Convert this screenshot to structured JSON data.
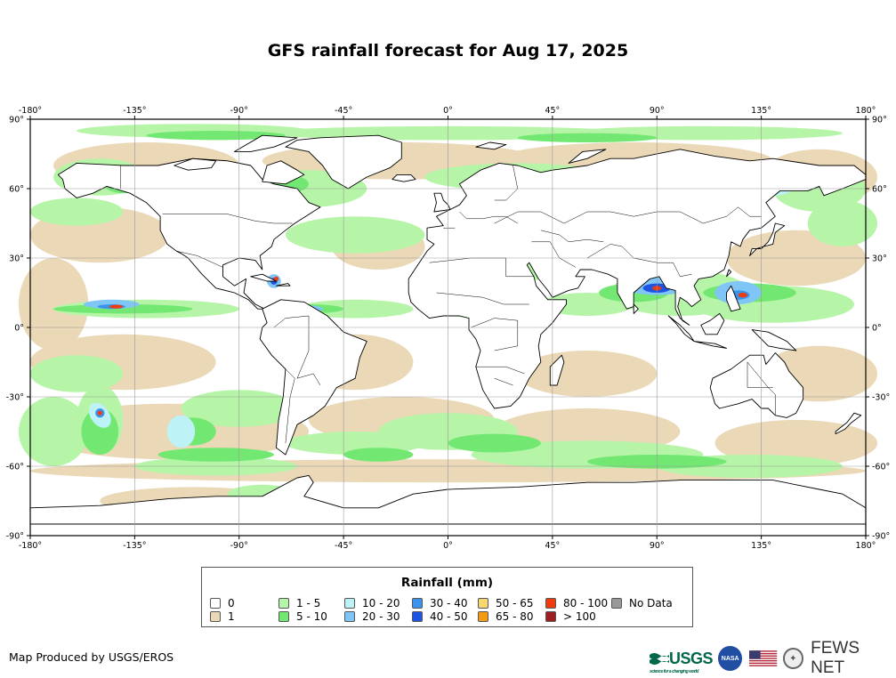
{
  "title": "GFS rainfall forecast for Aug 17, 2025",
  "map": {
    "lon_ticks": [
      "-180°",
      "-135°",
      "-90°",
      "-45°",
      "0°",
      "45°",
      "90°",
      "135°",
      "180°"
    ],
    "lat_ticks": [
      "90°",
      "60°",
      "30°",
      "0°",
      "-30°",
      "-60°",
      "-90°"
    ],
    "land_color": "#ffffff",
    "ocean_no_rain_color": "#ffffff",
    "border_color": "#000000",
    "grid_color": "#999999"
  },
  "legend": {
    "title": "Rainfall (mm)",
    "items": [
      {
        "label": "0",
        "color": "#ffffff"
      },
      {
        "label": "1",
        "color": "#ead8b6"
      },
      {
        "label": "1 - 5",
        "color": "#b6f5a8"
      },
      {
        "label": "5 - 10",
        "color": "#72e872"
      },
      {
        "label": "10 - 20",
        "color": "#bdf2f6"
      },
      {
        "label": "20 - 30",
        "color": "#7fc5f5"
      },
      {
        "label": "30 - 40",
        "color": "#3b93ed"
      },
      {
        "label": "40 - 50",
        "color": "#1f54e3"
      },
      {
        "label": "50 - 65",
        "color": "#f6d772"
      },
      {
        "label": "65 - 80",
        "color": "#f39c12"
      },
      {
        "label": "80 - 100",
        "color": "#ee3b10"
      },
      {
        "label": "> 100",
        "color": "#9e1f1f"
      },
      {
        "label": "No Data",
        "color": "#999999"
      }
    ]
  },
  "credit": "Map Produced by USGS/EROS",
  "logos": {
    "usgs": "USGS",
    "usgs_tagline": "science for a changing world",
    "nasa": "NASA",
    "fews": "FEWS NET"
  }
}
